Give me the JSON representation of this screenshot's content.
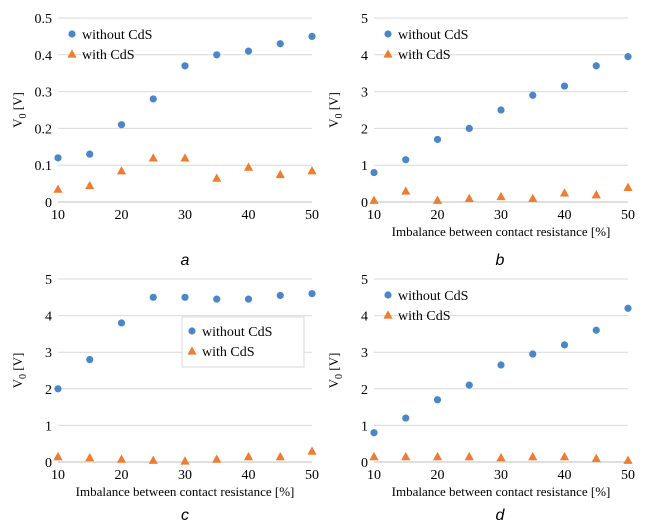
{
  "colors": {
    "without": "#4a86c8",
    "with": "#ed7d31",
    "grid": "#d9d9d9",
    "axis": "#bfbfbf"
  },
  "chart_data": [
    {
      "type": "scatter",
      "panel_label": "a",
      "xlabel": "",
      "ylabel": "V",
      "ylabel_sub": "0",
      "ylabel_unit": " [V]",
      "xlim": [
        10,
        50
      ],
      "ylim": [
        0,
        0.5
      ],
      "xticks": [
        "10",
        "20",
        "30",
        "40",
        "50"
      ],
      "yticks": [
        "0",
        "0.1",
        "0.2",
        "0.3",
        "0.4",
        "0.5"
      ],
      "legend_position": "top-left",
      "series": [
        {
          "name": "without CdS",
          "marker": "circle",
          "x": [
            10,
            15,
            20,
            25,
            30,
            35,
            40,
            45,
            50
          ],
          "y": [
            0.12,
            0.13,
            0.21,
            0.28,
            0.37,
            0.4,
            0.41,
            0.43,
            0.45
          ]
        },
        {
          "name": "with CdS",
          "marker": "triangle",
          "x": [
            10,
            15,
            20,
            25,
            30,
            35,
            40,
            45,
            50
          ],
          "y": [
            0.035,
            0.045,
            0.085,
            0.12,
            0.12,
            0.065,
            0.095,
            0.075,
            0.085
          ]
        }
      ]
    },
    {
      "type": "scatter",
      "panel_label": "b",
      "xlabel": "Imbalance between contact resistance [%]",
      "ylabel": "V",
      "ylabel_sub": "0",
      "ylabel_unit": " [V]",
      "xlim": [
        10,
        50
      ],
      "ylim": [
        0,
        5
      ],
      "xticks": [
        "10",
        "20",
        "30",
        "40",
        "50"
      ],
      "yticks": [
        "0",
        "1",
        "2",
        "3",
        "4",
        "5"
      ],
      "legend_position": "top-left",
      "series": [
        {
          "name": "without CdS",
          "marker": "circle",
          "x": [
            10,
            15,
            20,
            25,
            30,
            35,
            40,
            45,
            50
          ],
          "y": [
            0.8,
            1.15,
            1.7,
            2.0,
            2.5,
            2.9,
            3.15,
            3.7,
            3.95
          ]
        },
        {
          "name": "with CdS",
          "marker": "triangle",
          "x": [
            10,
            15,
            20,
            25,
            30,
            35,
            40,
            45,
            50
          ],
          "y": [
            0.05,
            0.3,
            0.05,
            0.1,
            0.15,
            0.1,
            0.25,
            0.2,
            0.4
          ]
        }
      ]
    },
    {
      "type": "scatter",
      "panel_label": "c",
      "xlabel": "Imbalance between contact resistance [%]",
      "ylabel": "V",
      "ylabel_sub": "0",
      "ylabel_unit": " [V]",
      "xlim": [
        10,
        50
      ],
      "ylim": [
        0,
        5
      ],
      "xticks": [
        "10",
        "20",
        "30",
        "40",
        "50"
      ],
      "yticks": [
        "0",
        "1",
        "2",
        "3",
        "4",
        "5"
      ],
      "legend_position": "center-right",
      "series": [
        {
          "name": "without CdS",
          "marker": "circle",
          "x": [
            10,
            15,
            20,
            25,
            30,
            35,
            40,
            45,
            50
          ],
          "y": [
            2.0,
            2.8,
            3.8,
            4.5,
            4.5,
            4.45,
            4.45,
            4.55,
            4.6
          ]
        },
        {
          "name": "with CdS",
          "marker": "triangle",
          "x": [
            10,
            15,
            20,
            25,
            30,
            35,
            40,
            45,
            50
          ],
          "y": [
            0.15,
            0.12,
            0.08,
            0.05,
            0.03,
            0.08,
            0.15,
            0.15,
            0.3
          ]
        }
      ]
    },
    {
      "type": "scatter",
      "panel_label": "d",
      "xlabel": "Imbalance between contact resistance [%]",
      "ylabel": "V",
      "ylabel_sub": "0",
      "ylabel_unit": " [V]",
      "xlim": [
        10,
        50
      ],
      "ylim": [
        0,
        5
      ],
      "xticks": [
        "10",
        "20",
        "30",
        "40",
        "50"
      ],
      "yticks": [
        "0",
        "1",
        "2",
        "3",
        "4",
        "5"
      ],
      "legend_position": "top-left",
      "series": [
        {
          "name": "without CdS",
          "marker": "circle",
          "x": [
            10,
            15,
            20,
            25,
            30,
            35,
            40,
            45,
            50
          ],
          "y": [
            0.8,
            1.2,
            1.7,
            2.1,
            2.65,
            2.95,
            3.2,
            3.6,
            4.2
          ]
        },
        {
          "name": "with CdS",
          "marker": "triangle",
          "x": [
            10,
            15,
            20,
            25,
            30,
            35,
            40,
            45,
            50
          ],
          "y": [
            0.15,
            0.15,
            0.15,
            0.15,
            0.12,
            0.15,
            0.15,
            0.1,
            0.05
          ]
        }
      ]
    }
  ]
}
